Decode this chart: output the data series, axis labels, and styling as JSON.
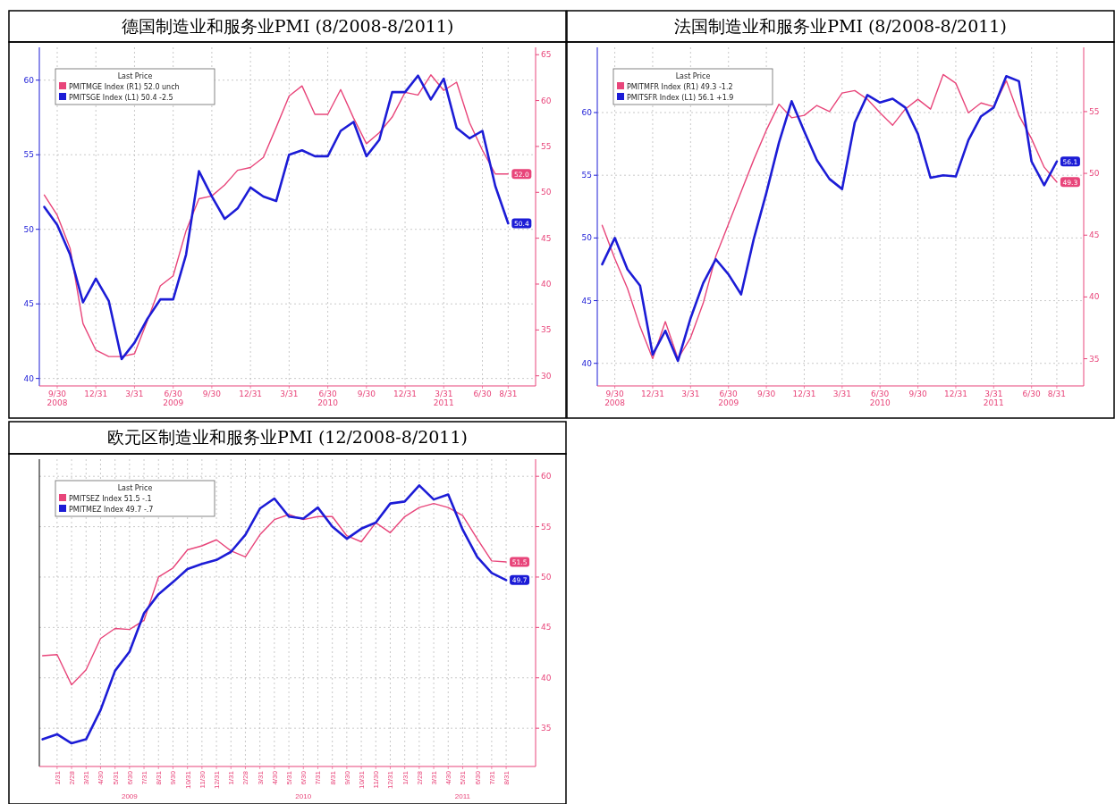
{
  "chart_data": [
    {
      "type": "line",
      "title": "德国制造业和服务业PMI (8/2008-8/2011)",
      "legend": "top left",
      "legend_title": "Last Price",
      "grid": true,
      "line_style": "solid",
      "x": [
        "2008-08",
        "2008-09",
        "2008-10",
        "2008-11",
        "2008-12",
        "2009-01",
        "2009-02",
        "2009-03",
        "2009-04",
        "2009-05",
        "2009-06",
        "2009-07",
        "2009-08",
        "2009-09",
        "2009-10",
        "2009-11",
        "2009-12",
        "2010-01",
        "2010-02",
        "2010-03",
        "2010-04",
        "2010-05",
        "2010-06",
        "2010-07",
        "2010-08",
        "2010-09",
        "2010-10",
        "2010-11",
        "2010-12",
        "2011-01",
        "2011-02",
        "2011-03",
        "2011-04",
        "2011-05",
        "2011-06",
        "2011-07",
        "2011-08"
      ],
      "xlim": [
        "2008-07-20",
        "2011-10-05"
      ],
      "xticks": [
        {
          "value": "2008-09",
          "label": "9/30\n2008"
        },
        {
          "value": "2008-12",
          "label": "12/31"
        },
        {
          "value": "2009-03",
          "label": "3/31"
        },
        {
          "value": "2009-06",
          "label": "6/30\n2009"
        },
        {
          "value": "2009-09",
          "label": "9/30"
        },
        {
          "value": "2009-12",
          "label": "12/31"
        },
        {
          "value": "2010-03",
          "label": "3/31"
        },
        {
          "value": "2010-06",
          "label": "6/30\n2010"
        },
        {
          "value": "2010-09",
          "label": "9/30"
        },
        {
          "value": "2010-12",
          "label": "12/31"
        },
        {
          "value": "2011-03",
          "label": "3/31\n2011"
        },
        {
          "value": "2011-06",
          "label": "6/30"
        },
        {
          "value": "2011-08",
          "label": "8/31"
        }
      ],
      "ylim": [
        39.5,
        62.2
      ],
      "yticks": [
        40,
        45,
        50,
        55,
        60
      ],
      "y2lim": [
        28.9,
        65.8
      ],
      "y2ticks": [
        30,
        35,
        40,
        45,
        50,
        55,
        60,
        65
      ],
      "series": [
        {
          "name": "PMITMGE Index (R1) 52.0 unch",
          "color": "#e8457a",
          "axis": "y2",
          "values": [
            49.7,
            47.5,
            43.9,
            35.7,
            32.8,
            32.1,
            32.1,
            32.4,
            36.0,
            39.8,
            40.9,
            45.8,
            49.3,
            49.6,
            50.8,
            52.4,
            52.7,
            53.8,
            57.1,
            60.5,
            61.6,
            58.5,
            58.5,
            61.2,
            58.1,
            55.3,
            56.5,
            58.2,
            60.9,
            60.6,
            62.8,
            61.1,
            62.0,
            57.6,
            54.6,
            52.0,
            52.0
          ],
          "value_labels": [
            null,
            null,
            null,
            null,
            null,
            null,
            null,
            null,
            null,
            null,
            null,
            null,
            null,
            null,
            null,
            null,
            null,
            null,
            null,
            null,
            null,
            null,
            null,
            null,
            null,
            null,
            null,
            null,
            null,
            null,
            null,
            null,
            null,
            null,
            null,
            null,
            "52.0"
          ]
        },
        {
          "name": "PMITSGE Index (L1) 50.4 -2.5",
          "color": "#1c1cd6",
          "axis": "y",
          "values": [
            51.5,
            50.3,
            48.3,
            45.1,
            46.7,
            45.2,
            41.3,
            42.4,
            44.0,
            45.3,
            45.3,
            48.3,
            53.9,
            52.2,
            50.7,
            51.4,
            52.8,
            52.2,
            51.9,
            55.0,
            55.3,
            54.9,
            54.9,
            56.6,
            57.2,
            54.9,
            56.0,
            59.2,
            59.2,
            60.3,
            58.7,
            60.1,
            56.8,
            56.1,
            56.6,
            52.9,
            50.4
          ],
          "value_labels": [
            null,
            null,
            null,
            null,
            null,
            null,
            null,
            null,
            null,
            null,
            null,
            null,
            null,
            null,
            null,
            null,
            null,
            null,
            null,
            null,
            null,
            null,
            null,
            null,
            null,
            null,
            null,
            null,
            null,
            null,
            null,
            null,
            null,
            null,
            null,
            null,
            "50.4"
          ]
        }
      ]
    },
    {
      "type": "line",
      "title": "法国制造业和服务业PMI (8/2008-8/2011)",
      "legend": "top left",
      "legend_title": "Last Price",
      "grid": true,
      "line_style": "solid",
      "x": [
        "2008-08",
        "2008-09",
        "2008-10",
        "2008-11",
        "2008-12",
        "2009-01",
        "2009-02",
        "2009-03",
        "2009-04",
        "2009-05",
        "2009-06",
        "2009-07",
        "2009-08",
        "2009-09",
        "2009-10",
        "2009-11",
        "2009-12",
        "2010-01",
        "2010-02",
        "2010-03",
        "2010-04",
        "2010-05",
        "2010-06",
        "2010-07",
        "2010-08",
        "2010-09",
        "2010-10",
        "2010-11",
        "2010-12",
        "2011-01",
        "2011-02",
        "2011-03",
        "2011-04",
        "2011-05",
        "2011-06",
        "2011-07",
        "2011-08"
      ],
      "xlim": [
        "2008-07-20",
        "2011-10-05"
      ],
      "xticks": [
        {
          "value": "2008-09",
          "label": "9/30\n2008"
        },
        {
          "value": "2008-12",
          "label": "12/31"
        },
        {
          "value": "2009-03",
          "label": "3/31"
        },
        {
          "value": "2009-06",
          "label": "6/30\n2009"
        },
        {
          "value": "2009-09",
          "label": "9/30"
        },
        {
          "value": "2009-12",
          "label": "12/31"
        },
        {
          "value": "2010-03",
          "label": "3/31"
        },
        {
          "value": "2010-06",
          "label": "6/30\n2010"
        },
        {
          "value": "2010-09",
          "label": "9/30"
        },
        {
          "value": "2010-12",
          "label": "12/31"
        },
        {
          "value": "2011-03",
          "label": "3/31\n2011"
        },
        {
          "value": "2011-06",
          "label": "6/30"
        },
        {
          "value": "2011-08",
          "label": "8/31"
        }
      ],
      "ylim": [
        38.2,
        65.2
      ],
      "yticks": [
        40,
        45,
        50,
        55,
        60
      ],
      "y2lim": [
        32.8,
        60.2
      ],
      "y2ticks": [
        35,
        40,
        45,
        50,
        55
      ],
      "series": [
        {
          "name": "PMITMFR Index (R1) 49.3 -1.2",
          "color": "#e8457a",
          "axis": "y2",
          "values": [
            45.8,
            43.1,
            40.7,
            37.6,
            35.0,
            38.0,
            35.0,
            36.7,
            39.5,
            43.3,
            45.9,
            48.5,
            51.1,
            53.5,
            55.6,
            54.5,
            54.7,
            55.5,
            55.0,
            56.5,
            56.7,
            56.0,
            54.9,
            53.9,
            55.2,
            56.0,
            55.2,
            58.0,
            57.3,
            54.9,
            55.7,
            55.4,
            57.5,
            54.7,
            52.8,
            50.5,
            49.3
          ],
          "value_labels": [
            null,
            null,
            null,
            null,
            null,
            null,
            null,
            null,
            null,
            null,
            null,
            null,
            null,
            null,
            null,
            null,
            null,
            null,
            null,
            null,
            null,
            null,
            null,
            null,
            null,
            null,
            null,
            null,
            null,
            null,
            null,
            null,
            null,
            null,
            null,
            null,
            "49.3"
          ]
        },
        {
          "name": "PMITSFR Index (L1) 56.1 +1.9",
          "color": "#1c1cd6",
          "axis": "y",
          "values": [
            47.9,
            50.0,
            47.5,
            46.2,
            40.7,
            42.6,
            40.2,
            43.6,
            46.4,
            48.3,
            47.1,
            45.5,
            49.9,
            53.6,
            57.6,
            60.9,
            58.5,
            56.2,
            54.7,
            53.9,
            59.2,
            61.4,
            60.8,
            61.1,
            60.4,
            58.3,
            54.8,
            55.0,
            54.9,
            57.8,
            59.7,
            60.4,
            62.9,
            62.5,
            56.1,
            54.2,
            56.1
          ],
          "value_labels": [
            null,
            null,
            null,
            null,
            null,
            null,
            null,
            null,
            null,
            null,
            null,
            null,
            null,
            null,
            null,
            null,
            null,
            null,
            null,
            null,
            null,
            null,
            null,
            null,
            null,
            null,
            null,
            null,
            null,
            null,
            null,
            null,
            null,
            null,
            null,
            null,
            "56.1"
          ]
        }
      ]
    },
    {
      "type": "line",
      "title": "欧元区制造业和服务业PMI (12/2008-8/2011)",
      "legend": "top left",
      "legend_title": "Last Price",
      "grid": true,
      "line_style": "solid",
      "x": [
        "2008-12",
        "2009-01",
        "2009-02",
        "2009-03",
        "2009-04",
        "2009-05",
        "2009-06",
        "2009-07",
        "2009-08",
        "2009-09",
        "2009-10",
        "2009-11",
        "2009-12",
        "2010-01",
        "2010-02",
        "2010-03",
        "2010-04",
        "2010-05",
        "2010-06",
        "2010-07",
        "2010-08",
        "2010-09",
        "2010-10",
        "2010-11",
        "2010-12",
        "2011-01",
        "2011-02",
        "2011-03",
        "2011-04",
        "2011-05",
        "2011-06",
        "2011-07",
        "2011-08"
      ],
      "xlim": [
        "2008-11-25",
        "2011-10-02"
      ],
      "xticks": [
        {
          "value": "2009-01",
          "label": "1/31"
        },
        {
          "value": "2009-02",
          "label": "2/28"
        },
        {
          "value": "2009-03",
          "label": "3/31"
        },
        {
          "value": "2009-04",
          "label": "4/30"
        },
        {
          "value": "2009-05",
          "label": "5/31"
        },
        {
          "value": "2009-06",
          "label": "6/30\n2009"
        },
        {
          "value": "2009-07",
          "label": "7/31"
        },
        {
          "value": "2009-08",
          "label": "8/31"
        },
        {
          "value": "2009-09",
          "label": "9/30"
        },
        {
          "value": "2009-10",
          "label": "10/31"
        },
        {
          "value": "2009-11",
          "label": "11/30"
        },
        {
          "value": "2009-12",
          "label": "12/31"
        },
        {
          "value": "2010-01",
          "label": "1/31"
        },
        {
          "value": "2010-02",
          "label": "2/28"
        },
        {
          "value": "2010-03",
          "label": "3/31"
        },
        {
          "value": "2010-04",
          "label": "4/30"
        },
        {
          "value": "2010-05",
          "label": "5/31"
        },
        {
          "value": "2010-06",
          "label": "6/30\n2010"
        },
        {
          "value": "2010-07",
          "label": "7/31"
        },
        {
          "value": "2010-08",
          "label": "8/31"
        },
        {
          "value": "2010-09",
          "label": "9/30"
        },
        {
          "value": "2010-10",
          "label": "10/31"
        },
        {
          "value": "2010-11",
          "label": "11/30"
        },
        {
          "value": "2010-12",
          "label": "12/31"
        },
        {
          "value": "2011-01",
          "label": "1/31"
        },
        {
          "value": "2011-02",
          "label": "2/28"
        },
        {
          "value": "2011-03",
          "label": "3/31"
        },
        {
          "value": "2011-04",
          "label": "4/30"
        },
        {
          "value": "2011-05",
          "label": "5/31\n2011"
        },
        {
          "value": "2011-06",
          "label": "6/30"
        },
        {
          "value": "2011-07",
          "label": "7/31"
        },
        {
          "value": "2011-08",
          "label": "8/31"
        }
      ],
      "y2lim": [
        31.2,
        61.7
      ],
      "y2ticks": [
        35,
        40,
        45,
        50,
        55,
        60
      ],
      "series": [
        {
          "name": "PMITSEZ Index 51.5 -.1",
          "color": "#e8457a",
          "axis": "y2",
          "values": [
            42.2,
            42.3,
            39.3,
            40.8,
            43.9,
            44.9,
            44.8,
            45.7,
            50.0,
            50.9,
            52.7,
            53.1,
            53.7,
            52.6,
            52.0,
            54.2,
            55.7,
            56.2,
            55.7,
            56.0,
            56.0,
            54.1,
            53.5,
            55.4,
            54.4,
            56.0,
            56.9,
            57.3,
            56.9,
            56.1,
            53.8,
            51.6,
            51.5
          ],
          "value_labels": [
            null,
            null,
            null,
            null,
            null,
            null,
            null,
            null,
            null,
            null,
            null,
            null,
            null,
            null,
            null,
            null,
            null,
            null,
            null,
            null,
            null,
            null,
            null,
            null,
            null,
            null,
            null,
            null,
            null,
            null,
            null,
            null,
            "51.5"
          ]
        },
        {
          "name": "PMITMEZ Index 49.7 -.7",
          "color": "#1c1cd6",
          "axis": "y2",
          "values": [
            33.9,
            34.4,
            33.5,
            33.9,
            36.8,
            40.7,
            42.6,
            46.4,
            48.3,
            49.5,
            50.8,
            51.3,
            51.7,
            52.5,
            54.2,
            56.8,
            57.8,
            56.0,
            55.8,
            56.9,
            55.0,
            53.8,
            54.8,
            55.4,
            57.3,
            57.5,
            59.1,
            57.7,
            58.2,
            54.7,
            52.0,
            50.4,
            49.7
          ],
          "value_labels": [
            null,
            null,
            null,
            null,
            null,
            null,
            null,
            null,
            null,
            null,
            null,
            null,
            null,
            null,
            null,
            null,
            null,
            null,
            null,
            null,
            null,
            null,
            null,
            null,
            null,
            null,
            null,
            null,
            null,
            null,
            null,
            null,
            "49.7"
          ]
        }
      ]
    }
  ]
}
